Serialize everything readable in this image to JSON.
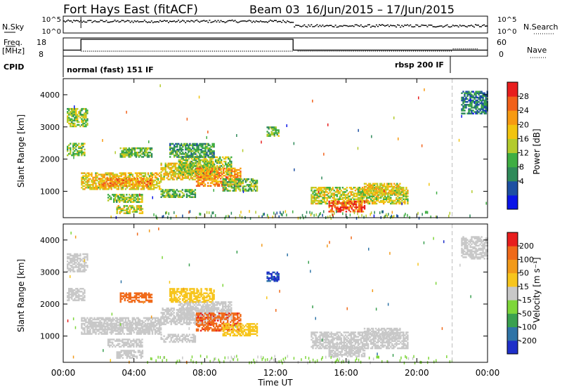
{
  "header": {
    "station": "Fort Hays East (fitACF)",
    "beam": "Beam 03",
    "date_range": "16/Jun/2015 – 17/Jun/2015"
  },
  "top_strips": {
    "nsky_label": "N.Sky",
    "nsearch_label": "N.Search",
    "freq_label": "Freq.",
    "freq_unit": "[MHz]",
    "nave_label": "Nave",
    "cpid_label": "CPID",
    "noise_ticks": [
      "10^5",
      "10^0"
    ],
    "freq_ticks": [
      "18",
      "8"
    ],
    "nave_ticks": [
      "60",
      "0"
    ],
    "cpid_segments": [
      {
        "label": "normal (fast) 151 IF",
        "start_hour": 0
      },
      {
        "label": "rbsp 200 IF",
        "start_hour": 22
      }
    ]
  },
  "axes": {
    "x_label": "Time UT",
    "y_label": "Slant Range [km]",
    "x_ticks": [
      "00:00",
      "04:00",
      "08:00",
      "12:00",
      "16:00",
      "20:00",
      "00:00"
    ],
    "y_ticks": [
      "4000",
      "3000",
      "2000",
      "1000"
    ]
  },
  "chart_data": {
    "type": "heatmap",
    "x_range_hours": [
      0,
      24
    ],
    "y_range_km": [
      180,
      4500
    ],
    "x_tick_hours": [
      0,
      4,
      8,
      12,
      16,
      20,
      24
    ],
    "y_tick_km": [
      1000,
      2000,
      3000,
      4000
    ],
    "panels": [
      {
        "name": "power",
        "colorbar_label": "Power [dB]",
        "colorbar_ticks": [
          "28",
          "24",
          "20",
          "16",
          "12",
          "8",
          "4"
        ],
        "colorbar_values": [
          4,
          8,
          12,
          16,
          20,
          24,
          28
        ],
        "scale_range": [
          0,
          30
        ],
        "colorbar_colors": [
          "#0a14e8",
          "#1d4fa2",
          "#2f8a5a",
          "#3fae43",
          "#b3cb2c",
          "#f2c40f",
          "#f79a12",
          "#f2611a",
          "#e81e1e"
        ]
      },
      {
        "name": "velocity",
        "colorbar_label": "Velocity [m s⁻¹]",
        "colorbar_ticks": [
          "200",
          "100",
          "50",
          "15",
          "-15",
          "-50",
          "-100",
          "-200"
        ],
        "colorbar_values": [
          200,
          100,
          50,
          15,
          -15,
          -50,
          -100,
          -200
        ],
        "scale_range": [
          -250,
          250
        ],
        "colorbar_colors": [
          "#1e2fc9",
          "#2f74a7",
          "#3aa050",
          "#7ed63a",
          "#c8c8c8",
          "#f7c51d",
          "#f29a1a",
          "#f06a1a",
          "#e81e1e"
        ]
      }
    ],
    "regions": [
      {
        "t0": 0.2,
        "t1": 1.4,
        "r0": 3000,
        "r1": 3550,
        "power": 14,
        "velocity": 0
      },
      {
        "t0": 0.2,
        "t1": 1.2,
        "r0": 2100,
        "r1": 2500,
        "power": 14,
        "velocity": 0
      },
      {
        "t0": 1.0,
        "t1": 5.5,
        "r0": 1050,
        "r1": 1550,
        "power": 18,
        "velocity": 5
      },
      {
        "t0": 2.0,
        "t1": 5.0,
        "r0": 1150,
        "r1": 1400,
        "power": 22,
        "velocity": 0
      },
      {
        "t0": 2.5,
        "t1": 4.5,
        "r0": 650,
        "r1": 900,
        "power": 14,
        "velocity": 5
      },
      {
        "t0": 3.2,
        "t1": 5.0,
        "r0": 2050,
        "r1": 2350,
        "power": 12,
        "velocity": 170
      },
      {
        "t0": 3.0,
        "t1": 4.5,
        "r0": 300,
        "r1": 550,
        "power": 16,
        "velocity": -5
      },
      {
        "t0": 5.5,
        "t1": 8.5,
        "r0": 1350,
        "r1": 1850,
        "power": 18,
        "velocity": 8
      },
      {
        "t0": 6.5,
        "t1": 9.5,
        "r0": 1500,
        "r1": 2050,
        "power": 14,
        "velocity": 0
      },
      {
        "t0": 5.5,
        "t1": 7.5,
        "r0": 800,
        "r1": 1050,
        "power": 12,
        "velocity": 0
      },
      {
        "t0": 7.5,
        "t1": 10.0,
        "r0": 1150,
        "r1": 1700,
        "power": 22,
        "velocity": 180
      },
      {
        "t0": 6.0,
        "t1": 8.5,
        "r0": 2050,
        "r1": 2500,
        "power": 10,
        "velocity": 60
      },
      {
        "t0": 9.0,
        "t1": 11.0,
        "r0": 1000,
        "r1": 1400,
        "power": 12,
        "velocity": 60
      },
      {
        "t0": 11.5,
        "t1": 12.2,
        "r0": 2700,
        "r1": 3000,
        "power": 12,
        "velocity": -200
      },
      {
        "t0": 14.0,
        "t1": 19.5,
        "r0": 600,
        "r1": 1100,
        "power": 16,
        "velocity": 0
      },
      {
        "t0": 15.0,
        "t1": 17.0,
        "r0": 350,
        "r1": 700,
        "power": 26,
        "velocity": 0
      },
      {
        "t0": 17.0,
        "t1": 19.0,
        "r0": 900,
        "r1": 1250,
        "power": 18,
        "velocity": 0
      },
      {
        "t0": 22.5,
        "t1": 24.0,
        "r0": 3400,
        "r1": 4100,
        "power": 8,
        "velocity": 0
      }
    ],
    "ground_scatter_band": {
      "t0": 4.5,
      "t1": 22.0,
      "r0": 200,
      "r1": 420
    },
    "noise_sky": {
      "level_before_13h": 0.72,
      "level_after_13h": 0.45
    },
    "frequency_mhz": {
      "before_1h": 11,
      "from_1h_to_13h": 18,
      "after_13h": 11
    },
    "nave": {
      "before_22h": 0.35,
      "after_22h": 0.5
    },
    "dashed_marker_hour": 22
  }
}
